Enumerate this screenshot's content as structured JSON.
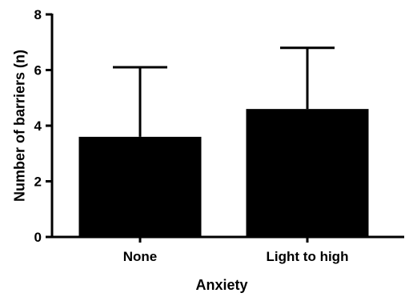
{
  "chart_data": {
    "type": "bar",
    "categories": [
      "None",
      "Light to high"
    ],
    "values": [
      3.6,
      4.6
    ],
    "error_upper": [
      6.1,
      6.8
    ],
    "title": "",
    "xlabel": "Anxiety",
    "ylabel": "Number of barriers (n)",
    "ylim": [
      0,
      8
    ],
    "yticks": [
      0,
      2,
      4,
      6,
      8
    ],
    "grid": false,
    "legend": "none",
    "bar_color": "#000000"
  }
}
